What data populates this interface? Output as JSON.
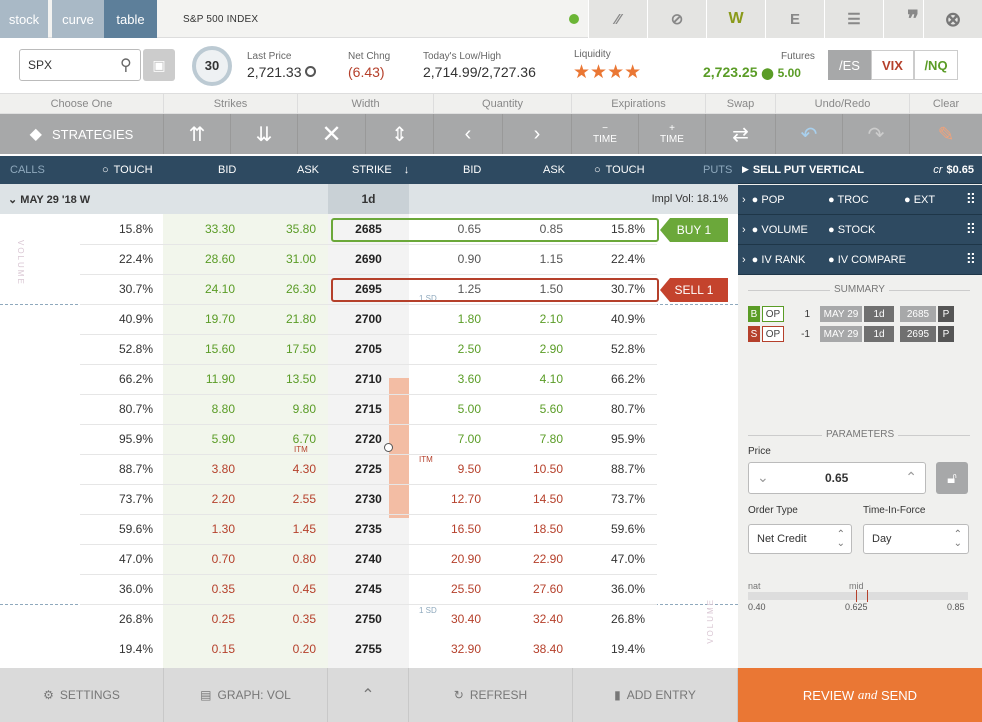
{
  "tabs": {
    "stock": "stock",
    "curve": "curve",
    "table": "table"
  },
  "title": "S&P 500 INDEX",
  "toolbar_icons": [
    "pen-icon",
    "link-icon",
    "W",
    "E",
    "grid-icon",
    "quote-icon"
  ],
  "search": {
    "value": "SPX"
  },
  "quote": {
    "score": "30",
    "last_price_label": "Last Price",
    "last_price": "2,721.33",
    "net_chng_label": "Net Chng",
    "net_chng": "(6.43)",
    "lowhigh_label": "Today's Low/High",
    "lowhigh": "2,714.99/2,727.36",
    "liquidity_label": "Liquidity",
    "stars": "★★★★",
    "futures_label": "Futures",
    "futures": "2,723.25",
    "futures_chg": "5.00",
    "fut_buttons": [
      "/ES",
      "VIX",
      "/NQ"
    ]
  },
  "headers": [
    "Choose One",
    "Strikes",
    "Width",
    "Quantity",
    "Expirations",
    "Swap",
    "Undo/Redo",
    "Clear"
  ],
  "tools": {
    "strategies": "STRATEGIES",
    "minus_time": "TIME",
    "plus_time": "TIME",
    "minus": "−",
    "plus": "+"
  },
  "columns": {
    "calls": "CALLS",
    "touch": "TOUCH",
    "bid": "BID",
    "ask": "ASK",
    "strike": "STRIKE",
    "bid2": "BID",
    "ask2": "ASK",
    "touch2": "TOUCH",
    "puts": "PUTS"
  },
  "expiry": {
    "label": "MAY 29 '18 W",
    "dte": "1d",
    "impl_vol": "Impl Vol: 18.1%"
  },
  "rows": [
    {
      "ct": "15.8%",
      "cb": "33.30",
      "ca": "35.80",
      "k": "2685",
      "pb": "0.65",
      "pa": "0.85",
      "pt": "15.8%"
    },
    {
      "ct": "22.4%",
      "cb": "28.60",
      "ca": "31.00",
      "k": "2690",
      "pb": "0.90",
      "pa": "1.15",
      "pt": "22.4%"
    },
    {
      "ct": "30.7%",
      "cb": "24.10",
      "ca": "26.30",
      "k": "2695",
      "pb": "1.25",
      "pa": "1.50",
      "pt": "30.7%"
    },
    {
      "ct": "40.9%",
      "cb": "19.70",
      "ca": "21.80",
      "k": "2700",
      "pb": "1.80",
      "pa": "2.10",
      "pt": "40.9%"
    },
    {
      "ct": "52.8%",
      "cb": "15.60",
      "ca": "17.50",
      "k": "2705",
      "pb": "2.50",
      "pa": "2.90",
      "pt": "52.8%"
    },
    {
      "ct": "66.2%",
      "cb": "11.90",
      "ca": "13.50",
      "k": "2710",
      "pb": "3.60",
      "pa": "4.10",
      "pt": "66.2%"
    },
    {
      "ct": "80.7%",
      "cb": "8.80",
      "ca": "9.80",
      "k": "2715",
      "pb": "5.00",
      "pa": "5.60",
      "pt": "80.7%"
    },
    {
      "ct": "95.9%",
      "cb": "5.90",
      "ca": "6.70",
      "k": "2720",
      "pb": "7.00",
      "pa": "7.80",
      "pt": "95.9%"
    },
    {
      "ct": "88.7%",
      "cb": "3.80",
      "ca": "4.30",
      "k": "2725",
      "pb": "9.50",
      "pa": "10.50",
      "pt": "88.7%"
    },
    {
      "ct": "73.7%",
      "cb": "2.20",
      "ca": "2.55",
      "k": "2730",
      "pb": "12.70",
      "pa": "14.50",
      "pt": "73.7%"
    },
    {
      "ct": "59.6%",
      "cb": "1.30",
      "ca": "1.45",
      "k": "2735",
      "pb": "16.50",
      "pa": "18.50",
      "pt": "59.6%"
    },
    {
      "ct": "47.0%",
      "cb": "0.70",
      "ca": "0.80",
      "k": "2740",
      "pb": "20.90",
      "pa": "22.90",
      "pt": "47.0%"
    },
    {
      "ct": "36.0%",
      "cb": "0.35",
      "ca": "0.45",
      "k": "2745",
      "pb": "25.50",
      "pa": "27.60",
      "pt": "36.0%"
    },
    {
      "ct": "26.8%",
      "cb": "0.25",
      "ca": "0.35",
      "k": "2750",
      "pb": "30.40",
      "pa": "32.40",
      "pt": "26.8%"
    },
    {
      "ct": "19.4%",
      "cb": "0.15",
      "ca": "0.20",
      "k": "2755",
      "pb": "32.90",
      "pa": "38.40",
      "pt": "19.4%"
    }
  ],
  "markers": {
    "buy": "BUY 1",
    "sell": "SELL 1",
    "sd_top": "1 SD",
    "sd_bot": "1 SD",
    "itm_call": "ITM",
    "itm_put": "ITM",
    "volume": "VOLUME"
  },
  "panel": {
    "strategy": "SELL PUT VERTICAL",
    "credit_prefix": "cr",
    "credit": "$0.65",
    "rows": [
      [
        "POP",
        "TROC",
        "EXT"
      ],
      [
        "VOLUME",
        "STOCK"
      ],
      [
        "IV RANK",
        "IV COMPARE"
      ]
    ],
    "summary": "SUMMARY",
    "legs": [
      {
        "side": "B",
        "type": "OP",
        "qty": "1",
        "exp": "MAY 29",
        "dte": "1d",
        "strike": "2685",
        "pc": "P"
      },
      {
        "side": "S",
        "type": "OP",
        "qty": "-1",
        "exp": "MAY 29",
        "dte": "1d",
        "strike": "2695",
        "pc": "P"
      }
    ],
    "parameters": "PARAMETERS",
    "price_label": "Price",
    "price": "0.65",
    "order_type_label": "Order Type",
    "order_type": "Net Credit",
    "tif_label": "Time-In-Force",
    "tif": "Day",
    "nat": "nat",
    "mid": "mid",
    "nat_val": "0.40",
    "mid_val": "0.625",
    "far_val": "0.85"
  },
  "bottom": {
    "settings": "SETTINGS",
    "graph": "GRAPH: VOL",
    "refresh": "REFRESH",
    "add_entry": "ADD ENTRY",
    "review": "REVIEW",
    "and": "and",
    "send": "SEND"
  },
  "colors": {
    "navy": "#2e4a61",
    "green": "#5a9c26",
    "red": "#b5402b",
    "orange": "#ea7734"
  }
}
